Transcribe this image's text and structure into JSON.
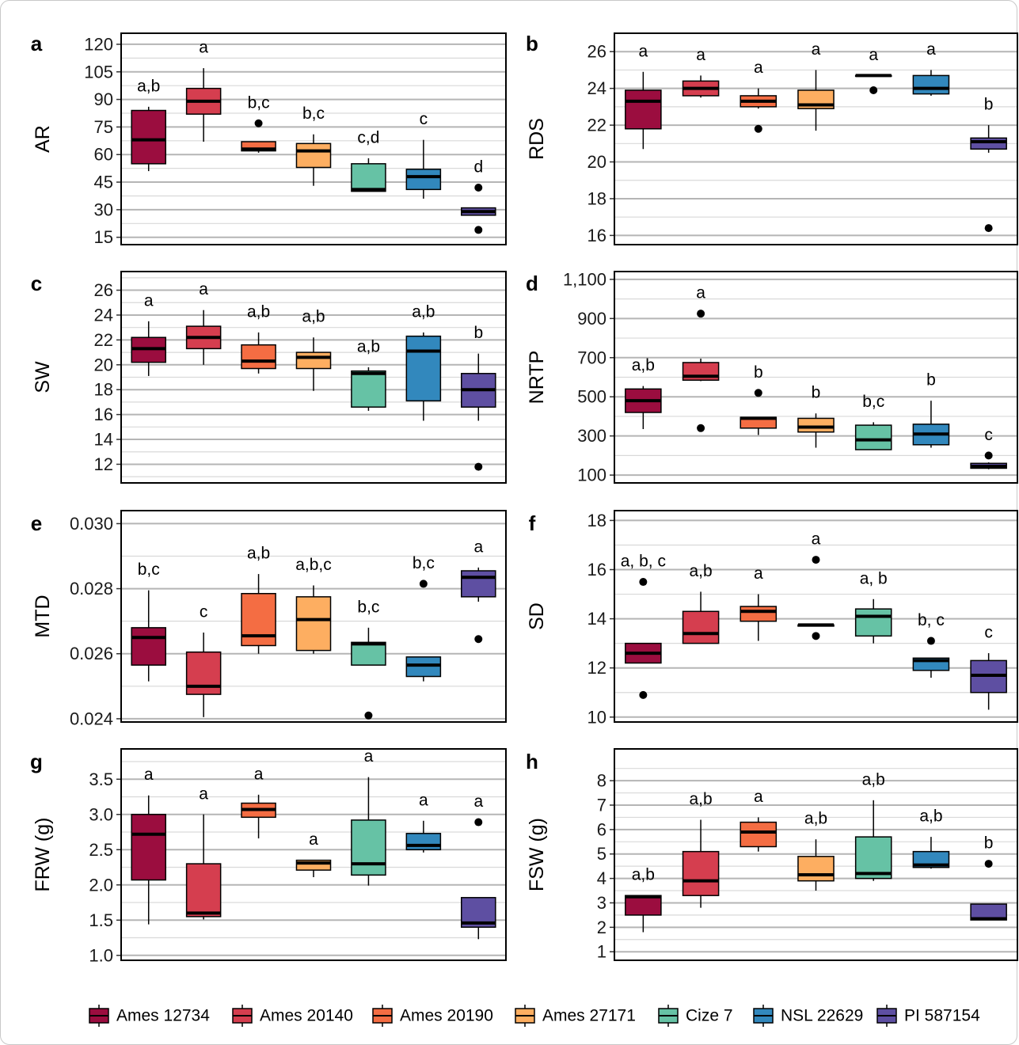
{
  "groups": [
    "Ames 12734",
    "Ames 20140",
    "Ames 20190",
    "Ames 27171",
    "Cize 7",
    "NSL 22629",
    "PI 587154"
  ],
  "colors": [
    "#9b0d3f",
    "#d53e4f",
    "#f46d43",
    "#fdae61",
    "#66c2a5",
    "#3288bd",
    "#5e4fa2"
  ],
  "chart_data": [
    {
      "type": "box",
      "panel": "a",
      "ylabel": "AR",
      "ylim": [
        11,
        126
      ],
      "yticks": [
        15,
        30,
        45,
        60,
        75,
        90,
        105,
        120
      ],
      "ytick_labels": [
        "15",
        "30",
        "45",
        "60",
        "75",
        "90",
        "105",
        "120"
      ],
      "boxes": [
        {
          "group": "Ames 12734",
          "min": 51,
          "q1": 55,
          "median": 68,
          "q3": 84,
          "max": 86,
          "outliers": [],
          "letter": "a,b"
        },
        {
          "group": "Ames 20140",
          "min": 67,
          "q1": 82,
          "median": 89,
          "q3": 96,
          "max": 107,
          "outliers": [],
          "letter": "a"
        },
        {
          "group": "Ames 20190",
          "min": 61,
          "q1": 62,
          "median": 63,
          "q3": 67,
          "max": 67,
          "outliers": [
            77
          ],
          "letter": "b,c"
        },
        {
          "group": "Ames 27171",
          "min": 43,
          "q1": 53,
          "median": 62,
          "q3": 66,
          "max": 71,
          "outliers": [],
          "letter": "b,c"
        },
        {
          "group": "Cize 7",
          "min": 40,
          "q1": 40,
          "median": 41,
          "q3": 55,
          "max": 58,
          "outliers": [],
          "letter": "c,d"
        },
        {
          "group": "NSL 22629",
          "min": 36,
          "q1": 41,
          "median": 48,
          "q3": 52,
          "max": 68,
          "outliers": [],
          "letter": "c"
        },
        {
          "group": "PI 587154",
          "min": 27,
          "q1": 27,
          "median": 29,
          "q3": 31,
          "max": 31,
          "outliers": [
            42,
            19
          ],
          "letter": "d"
        }
      ]
    },
    {
      "type": "box",
      "panel": "b",
      "ylabel": "RDS",
      "ylim": [
        15.5,
        27.0
      ],
      "yticks": [
        16,
        18,
        20,
        22,
        24,
        26
      ],
      "ytick_labels": [
        "16",
        "18",
        "20",
        "22",
        "24",
        "26"
      ],
      "boxes": [
        {
          "group": "Ames 12734",
          "min": 20.7,
          "q1": 21.8,
          "median": 23.3,
          "q3": 23.9,
          "max": 24.9,
          "outliers": [],
          "letter": "a"
        },
        {
          "group": "Ames 20140",
          "min": 23.5,
          "q1": 23.6,
          "median": 24.0,
          "q3": 24.4,
          "max": 24.7,
          "outliers": [],
          "letter": "a"
        },
        {
          "group": "Ames 20190",
          "min": 22.9,
          "q1": 23.0,
          "median": 23.3,
          "q3": 23.6,
          "max": 24.0,
          "outliers": [
            21.8
          ],
          "letter": "a"
        },
        {
          "group": "Ames 27171",
          "min": 21.7,
          "q1": 22.9,
          "median": 23.1,
          "q3": 23.9,
          "max": 25.0,
          "outliers": [],
          "letter": "a"
        },
        {
          "group": "Cize 7",
          "min": 24.7,
          "q1": 24.7,
          "median": 24.7,
          "q3": 24.7,
          "max": 24.7,
          "outliers": [
            23.9
          ],
          "letter": "a"
        },
        {
          "group": "NSL 22629",
          "min": 23.6,
          "q1": 23.7,
          "median": 24.0,
          "q3": 24.7,
          "max": 25.0,
          "outliers": [],
          "letter": "a"
        },
        {
          "group": "PI 587154",
          "min": 20.5,
          "q1": 20.7,
          "median": 21.1,
          "q3": 21.3,
          "max": 22.0,
          "outliers": [
            16.4
          ],
          "letter": "b"
        }
      ]
    },
    {
      "type": "box",
      "panel": "c",
      "ylabel": "SW",
      "ylim": [
        10.5,
        27.5
      ],
      "yticks": [
        12,
        14,
        16,
        18,
        20,
        22,
        24,
        26
      ],
      "ytick_labels": [
        "12",
        "14",
        "16",
        "18",
        "20",
        "22",
        "24",
        "26"
      ],
      "boxes": [
        {
          "group": "Ames 12734",
          "min": 19.1,
          "q1": 20.2,
          "median": 21.3,
          "q3": 22.2,
          "max": 23.5,
          "outliers": [],
          "letter": "a"
        },
        {
          "group": "Ames 20140",
          "min": 20.0,
          "q1": 21.3,
          "median": 22.2,
          "q3": 23.1,
          "max": 24.4,
          "outliers": [],
          "letter": "a"
        },
        {
          "group": "Ames 20190",
          "min": 19.3,
          "q1": 19.7,
          "median": 20.3,
          "q3": 21.6,
          "max": 22.6,
          "outliers": [],
          "letter": "a,b"
        },
        {
          "group": "Ames 27171",
          "min": 17.9,
          "q1": 19.7,
          "median": 20.6,
          "q3": 21.0,
          "max": 22.2,
          "outliers": [],
          "letter": "a,b"
        },
        {
          "group": "Cize 7",
          "min": 16.3,
          "q1": 16.6,
          "median": 19.3,
          "q3": 19.5,
          "max": 19.8,
          "outliers": [],
          "letter": "a,b"
        },
        {
          "group": "NSL 22629",
          "min": 15.5,
          "q1": 17.1,
          "median": 21.1,
          "q3": 22.3,
          "max": 22.6,
          "outliers": [],
          "letter": "a,b"
        },
        {
          "group": "PI 587154",
          "min": 15.5,
          "q1": 16.6,
          "median": 18.0,
          "q3": 19.3,
          "max": 20.9,
          "outliers": [
            11.8
          ],
          "letter": "b"
        }
      ]
    },
    {
      "type": "box",
      "panel": "d",
      "ylabel": "NRTP",
      "ylim": [
        60,
        1140
      ],
      "yticks": [
        100,
        300,
        500,
        700,
        900,
        1100
      ],
      "ytick_labels": [
        "100",
        "300",
        "500",
        "700",
        "900",
        "1,100"
      ],
      "boxes": [
        {
          "group": "Ames 12734",
          "min": 335,
          "q1": 420,
          "median": 480,
          "q3": 540,
          "max": 555,
          "outliers": [],
          "letter": "a,b"
        },
        {
          "group": "Ames 20140",
          "min": 580,
          "q1": 585,
          "median": 605,
          "q3": 675,
          "max": 695,
          "outliers": [
            925,
            340
          ],
          "letter": "a"
        },
        {
          "group": "Ames 20190",
          "min": 305,
          "q1": 340,
          "median": 390,
          "q3": 395,
          "max": 395,
          "outliers": [
            520
          ],
          "letter": "b"
        },
        {
          "group": "Ames 27171",
          "min": 240,
          "q1": 320,
          "median": 345,
          "q3": 390,
          "max": 415,
          "outliers": [],
          "letter": "b"
        },
        {
          "group": "Cize 7",
          "min": 230,
          "q1": 230,
          "median": 280,
          "q3": 355,
          "max": 370,
          "outliers": [],
          "letter": "b,c"
        },
        {
          "group": "NSL 22629",
          "min": 240,
          "q1": 255,
          "median": 310,
          "q3": 360,
          "max": 480,
          "outliers": [],
          "letter": "b"
        },
        {
          "group": "PI 587154",
          "min": 130,
          "q1": 135,
          "median": 145,
          "q3": 160,
          "max": 165,
          "outliers": [
            200
          ],
          "letter": "c"
        }
      ]
    },
    {
      "type": "box",
      "panel": "e",
      "ylabel": "MTD",
      "ylim": [
        0.0239,
        0.0304
      ],
      "yticks": [
        0.024,
        0.026,
        0.028,
        0.03
      ],
      "ytick_labels": [
        "0.024",
        "0.026",
        "0.028",
        "0.030"
      ],
      "boxes": [
        {
          "group": "Ames 12734",
          "min": 0.02515,
          "q1": 0.02565,
          "median": 0.0265,
          "q3": 0.0268,
          "max": 0.02795,
          "outliers": [],
          "letter": "b,c"
        },
        {
          "group": "Ames 20140",
          "min": 0.02405,
          "q1": 0.02475,
          "median": 0.025,
          "q3": 0.02605,
          "max": 0.02665,
          "outliers": [],
          "letter": "c"
        },
        {
          "group": "Ames 20190",
          "min": 0.026,
          "q1": 0.02625,
          "median": 0.02655,
          "q3": 0.02785,
          "max": 0.02845,
          "outliers": [],
          "letter": "a,b"
        },
        {
          "group": "Ames 27171",
          "min": 0.026,
          "q1": 0.0261,
          "median": 0.02705,
          "q3": 0.02775,
          "max": 0.0281,
          "outliers": [],
          "letter": "a,b,c"
        },
        {
          "group": "Cize 7",
          "min": 0.02565,
          "q1": 0.02565,
          "median": 0.0263,
          "q3": 0.02635,
          "max": 0.0268,
          "outliers": [
            0.0241
          ],
          "letter": "b,c"
        },
        {
          "group": "NSL 22629",
          "min": 0.02515,
          "q1": 0.0253,
          "median": 0.02565,
          "q3": 0.0259,
          "max": 0.0259,
          "outliers": [
            0.02815
          ],
          "letter": "b,c"
        },
        {
          "group": "PI 587154",
          "min": 0.0276,
          "q1": 0.02775,
          "median": 0.02835,
          "q3": 0.02855,
          "max": 0.02865,
          "outliers": [
            0.02645
          ],
          "letter": "a"
        }
      ]
    },
    {
      "type": "box",
      "panel": "f",
      "ylabel": "SD",
      "ylim": [
        9.8,
        18.4
      ],
      "yticks": [
        10,
        12,
        14,
        16,
        18
      ],
      "ytick_labels": [
        "10",
        "12",
        "14",
        "16",
        "18"
      ],
      "boxes": [
        {
          "group": "Ames 12734",
          "min": 12.2,
          "q1": 12.2,
          "median": 12.6,
          "q3": 13.0,
          "max": 13.0,
          "outliers": [
            15.5,
            10.9
          ],
          "letter": "a, b, c"
        },
        {
          "group": "Ames 20140",
          "min": 13.0,
          "q1": 13.0,
          "median": 13.4,
          "q3": 14.3,
          "max": 15.1,
          "outliers": [],
          "letter": "a,b"
        },
        {
          "group": "Ames 20190",
          "min": 13.1,
          "q1": 13.9,
          "median": 14.3,
          "q3": 14.5,
          "max": 15.0,
          "outliers": [],
          "letter": "a"
        },
        {
          "group": "Ames 27171",
          "min": 13.7,
          "q1": 13.7,
          "median": 13.75,
          "q3": 13.75,
          "max": 13.75,
          "outliers": [
            16.4,
            13.3
          ],
          "letter": "a"
        },
        {
          "group": "Cize 7",
          "min": 13.0,
          "q1": 13.3,
          "median": 14.1,
          "q3": 14.4,
          "max": 14.8,
          "outliers": [],
          "letter": "a, b"
        },
        {
          "group": "NSL 22629",
          "min": 11.6,
          "q1": 11.9,
          "median": 12.3,
          "q3": 12.4,
          "max": 12.4,
          "outliers": [
            13.1
          ],
          "letter": "b, c"
        },
        {
          "group": "PI 587154",
          "min": 10.3,
          "q1": 11.0,
          "median": 11.7,
          "q3": 12.3,
          "max": 12.6,
          "outliers": [],
          "letter": "c"
        }
      ]
    },
    {
      "type": "box",
      "panel": "g",
      "ylabel": "FRW (g)",
      "ylim": [
        0.93,
        3.93
      ],
      "yticks": [
        1.0,
        1.5,
        2.0,
        2.5,
        3.0,
        3.5
      ],
      "ytick_labels": [
        "1.0",
        "1.5",
        "2.0",
        "2.5",
        "3.0",
        "3.5"
      ],
      "boxes": [
        {
          "group": "Ames 12734",
          "min": 1.44,
          "q1": 2.07,
          "median": 2.72,
          "q3": 3.0,
          "max": 3.27,
          "outliers": [],
          "letter": "a"
        },
        {
          "group": "Ames 20140",
          "min": 1.51,
          "q1": 1.55,
          "median": 1.6,
          "q3": 2.3,
          "max": 3.0,
          "outliers": [],
          "letter": "a"
        },
        {
          "group": "Ames 20190",
          "min": 2.66,
          "q1": 2.96,
          "median": 3.07,
          "q3": 3.16,
          "max": 3.28,
          "outliers": [],
          "letter": "a"
        },
        {
          "group": "Ames 27171",
          "min": 2.11,
          "q1": 2.21,
          "median": 2.31,
          "q3": 2.35,
          "max": 2.35,
          "outliers": [],
          "letter": "a"
        },
        {
          "group": "Cize 7",
          "min": 1.99,
          "q1": 2.14,
          "median": 2.3,
          "q3": 2.92,
          "max": 3.53,
          "outliers": [],
          "letter": "a"
        },
        {
          "group": "NSL 22629",
          "min": 2.46,
          "q1": 2.5,
          "median": 2.56,
          "q3": 2.73,
          "max": 2.91,
          "outliers": [],
          "letter": "a"
        },
        {
          "group": "PI 587154",
          "min": 1.23,
          "q1": 1.4,
          "median": 1.46,
          "q3": 1.82,
          "max": 1.82,
          "outliers": [
            2.89
          ],
          "letter": "a"
        }
      ]
    },
    {
      "type": "box",
      "panel": "h",
      "ylabel": "FSW (g)",
      "ylim": [
        0.65,
        9.3
      ],
      "yticks": [
        1,
        2,
        3,
        4,
        5,
        6,
        7,
        8
      ],
      "ytick_labels": [
        "1",
        "2",
        "3",
        "4",
        "5",
        "6",
        "7",
        "8"
      ],
      "boxes": [
        {
          "group": "Ames 12734",
          "min": 1.8,
          "q1": 2.5,
          "median": 3.25,
          "q3": 3.3,
          "max": 3.3,
          "outliers": [],
          "letter": "a,b"
        },
        {
          "group": "Ames 20140",
          "min": 2.8,
          "q1": 3.3,
          "median": 3.9,
          "q3": 5.1,
          "max": 6.4,
          "outliers": [],
          "letter": "a,b"
        },
        {
          "group": "Ames 20190",
          "min": 5.1,
          "q1": 5.3,
          "median": 5.9,
          "q3": 6.3,
          "max": 6.5,
          "outliers": [],
          "letter": "a"
        },
        {
          "group": "Ames 27171",
          "min": 3.5,
          "q1": 3.9,
          "median": 4.15,
          "q3": 4.9,
          "max": 5.6,
          "outliers": [],
          "letter": "a,b"
        },
        {
          "group": "Cize 7",
          "min": 3.9,
          "q1": 4.0,
          "median": 4.2,
          "q3": 5.7,
          "max": 7.2,
          "outliers": [],
          "letter": "a,b"
        },
        {
          "group": "NSL 22629",
          "min": 4.4,
          "q1": 4.45,
          "median": 4.55,
          "q3": 5.1,
          "max": 5.7,
          "outliers": [],
          "letter": "a,b"
        },
        {
          "group": "PI 587154",
          "min": 2.3,
          "q1": 2.3,
          "median": 2.35,
          "q3": 2.95,
          "max": 2.95,
          "outliers": [
            4.6
          ],
          "letter": "b"
        }
      ]
    }
  ]
}
